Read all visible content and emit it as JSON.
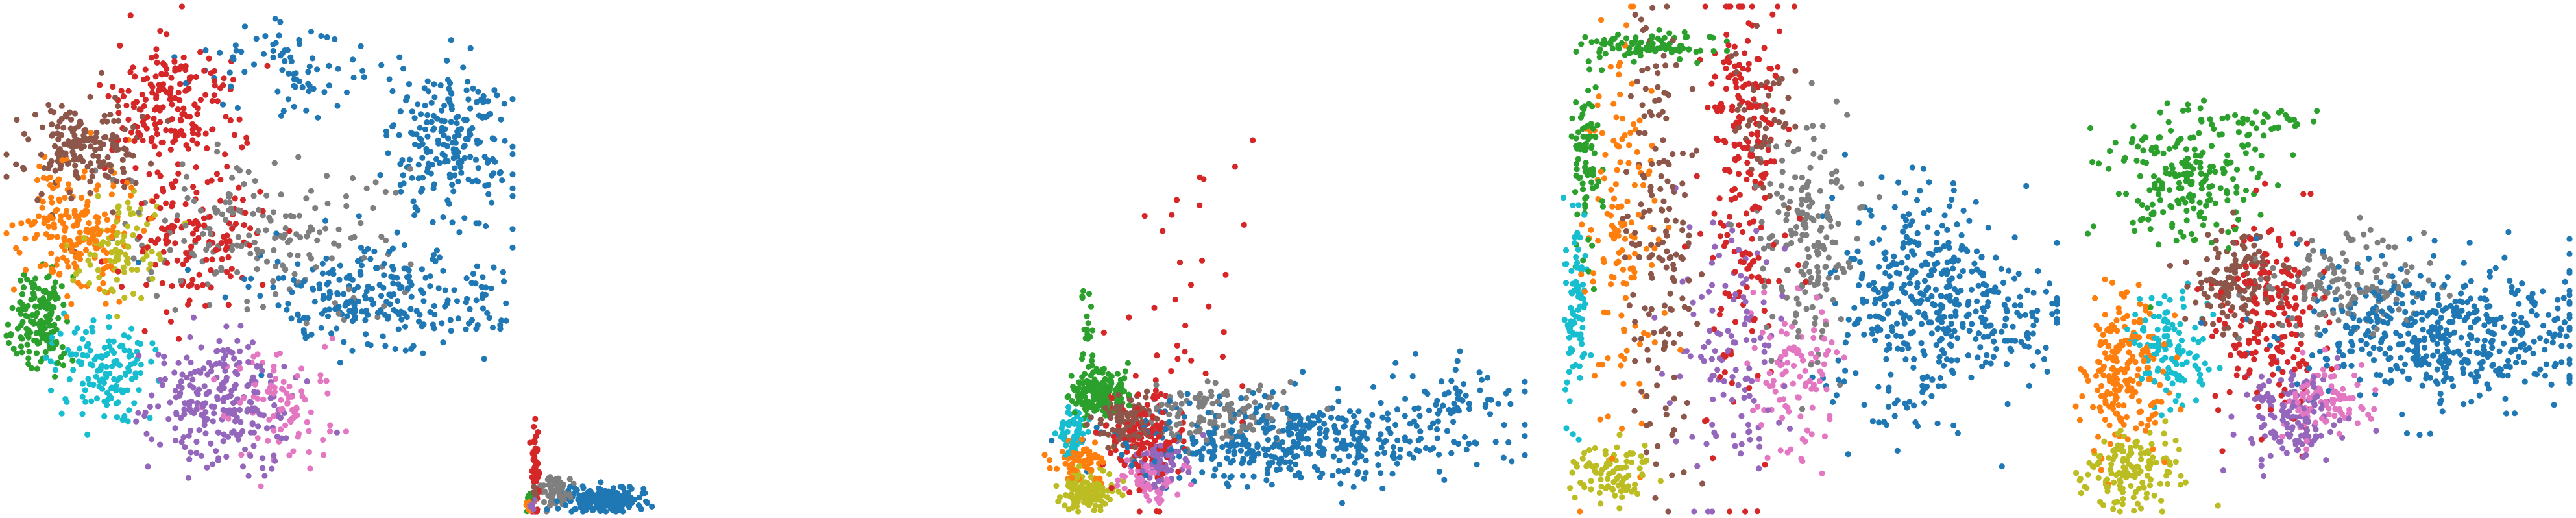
{
  "chart_data": [
    {
      "type": "scatter",
      "panel": 1,
      "title": "",
      "xlabel": "",
      "ylabel": "",
      "grid": false,
      "axes_visible": false,
      "legend": "none",
      "xlim": [
        0,
        1
      ],
      "ylim": [
        0,
        1
      ],
      "series": [
        {
          "color": "#1f77b4",
          "clusters": [
            {
              "center": [
                0.88,
                0.72
              ],
              "spread": [
                0.06,
                0.08
              ],
              "n": 220
            },
            {
              "center": [
                0.74,
                0.42
              ],
              "spread": [
                0.12,
                0.05
              ],
              "n": 260
            },
            {
              "center": [
                0.55,
                0.88
              ],
              "spread": [
                0.1,
                0.05
              ],
              "n": 80
            }
          ]
        },
        {
          "color": "#ff7f0e",
          "clusters": [
            {
              "center": [
                0.13,
                0.56
              ],
              "spread": [
                0.05,
                0.06
              ],
              "n": 200
            }
          ]
        },
        {
          "color": "#2ca02c",
          "clusters": [
            {
              "center": [
                0.07,
                0.38
              ],
              "spread": [
                0.025,
                0.05
              ],
              "n": 160
            }
          ]
        },
        {
          "color": "#d62728",
          "clusters": [
            {
              "center": [
                0.33,
                0.82
              ],
              "spread": [
                0.06,
                0.07
              ],
              "n": 180
            },
            {
              "center": [
                0.36,
                0.55
              ],
              "spread": [
                0.07,
                0.08
              ],
              "n": 140
            }
          ]
        },
        {
          "color": "#9467bd",
          "clusters": [
            {
              "center": [
                0.42,
                0.22
              ],
              "spread": [
                0.07,
                0.07
              ],
              "n": 240
            }
          ]
        },
        {
          "color": "#8c564b",
          "clusters": [
            {
              "center": [
                0.15,
                0.72
              ],
              "spread": [
                0.06,
                0.05
              ],
              "n": 180
            }
          ]
        },
        {
          "color": "#e377c2",
          "clusters": [
            {
              "center": [
                0.55,
                0.22
              ],
              "spread": [
                0.06,
                0.06
              ],
              "n": 90
            }
          ]
        },
        {
          "color": "#7f7f7f",
          "clusters": [
            {
              "center": [
                0.5,
                0.55
              ],
              "spread": [
                0.12,
                0.07
              ],
              "n": 180
            }
          ]
        },
        {
          "color": "#bcbd22",
          "clusters": [
            {
              "center": [
                0.22,
                0.52
              ],
              "spread": [
                0.04,
                0.05
              ],
              "n": 90
            }
          ]
        },
        {
          "color": "#17becf",
          "clusters": [
            {
              "center": [
                0.2,
                0.28
              ],
              "spread": [
                0.05,
                0.05
              ],
              "n": 140
            }
          ]
        }
      ]
    },
    {
      "type": "scatter",
      "panel": 2,
      "title": "",
      "xlabel": "",
      "ylabel": "",
      "grid": false,
      "axes_visible": false,
      "legend": "none",
      "xlim": [
        0,
        1
      ],
      "ylim": [
        0,
        1
      ],
      "series": [
        {
          "color": "#1f77b4",
          "clusters": [
            {
              "center": [
                0.45,
                0.025
              ],
              "spread": [
                0.12,
                0.012
              ],
              "n": 220
            }
          ]
        },
        {
          "color": "#d62728",
          "clusters": [
            {
              "center": [
                0.06,
                0.09
              ],
              "spread": [
                0.012,
                0.05
              ],
              "n": 50
            }
          ]
        },
        {
          "color": "#7f7f7f",
          "clusters": [
            {
              "center": [
                0.18,
                0.04
              ],
              "spread": [
                0.05,
                0.015
              ],
              "n": 60
            }
          ]
        },
        {
          "color": "#2ca02c",
          "clusters": [
            {
              "center": [
                0.02,
                0.02
              ],
              "spread": [
                0.008,
                0.008
              ],
              "n": 20
            }
          ]
        },
        {
          "color": "#ff7f0e",
          "clusters": [
            {
              "center": [
                0.03,
                0.015
              ],
              "spread": [
                0.01,
                0.008
              ],
              "n": 20
            }
          ]
        },
        {
          "color": "#9467bd",
          "clusters": [
            {
              "center": [
                0.04,
                0.01
              ],
              "spread": [
                0.01,
                0.006
              ],
              "n": 15
            }
          ]
        },
        {
          "color": "#8c564b",
          "clusters": [
            {
              "center": [
                0.05,
                0.03
              ],
              "spread": [
                0.012,
                0.01
              ],
              "n": 15
            }
          ]
        }
      ]
    },
    {
      "type": "scatter",
      "panel": 3,
      "title": "",
      "xlabel": "",
      "ylabel": "",
      "grid": false,
      "axes_visible": false,
      "legend": "none",
      "xlim": [
        0,
        1
      ],
      "ylim": [
        0,
        1
      ],
      "series": [
        {
          "color": "#1f77b4",
          "clusters": [
            {
              "center": [
                0.52,
                0.14
              ],
              "spread": [
                0.18,
                0.04
              ],
              "n": 420
            },
            {
              "center": [
                0.85,
                0.22
              ],
              "spread": [
                0.08,
                0.04
              ],
              "n": 60
            }
          ]
        },
        {
          "color": "#2ca02c",
          "clusters": [
            {
              "center": [
                0.11,
                0.24
              ],
              "spread": [
                0.03,
                0.025
              ],
              "n": 150
            },
            {
              "center": [
                0.09,
                0.35
              ],
              "spread": [
                0.01,
                0.05
              ],
              "n": 20
            }
          ]
        },
        {
          "color": "#bcbd22",
          "clusters": [
            {
              "center": [
                0.09,
                0.04
              ],
              "spread": [
                0.03,
                0.02
              ],
              "n": 120
            }
          ]
        },
        {
          "color": "#d62728",
          "clusters": [
            {
              "center": [
                0.21,
                0.15
              ],
              "spread": [
                0.04,
                0.05
              ],
              "n": 130
            },
            {
              "center": [
                0.32,
                0.45
              ],
              "spread": [
                0.08,
                0.15
              ],
              "n": 30
            }
          ]
        },
        {
          "color": "#8c564b",
          "clusters": [
            {
              "center": [
                0.17,
                0.18
              ],
              "spread": [
                0.03,
                0.03
              ],
              "n": 110
            }
          ]
        },
        {
          "color": "#7f7f7f",
          "clusters": [
            {
              "center": [
                0.35,
                0.19
              ],
              "spread": [
                0.08,
                0.03
              ],
              "n": 130
            }
          ]
        },
        {
          "color": "#ff7f0e",
          "clusters": [
            {
              "center": [
                0.08,
                0.1
              ],
              "spread": [
                0.025,
                0.025
              ],
              "n": 70
            }
          ]
        },
        {
          "color": "#9467bd",
          "clusters": [
            {
              "center": [
                0.24,
                0.1
              ],
              "spread": [
                0.025,
                0.025
              ],
              "n": 80
            }
          ]
        },
        {
          "color": "#17becf",
          "clusters": [
            {
              "center": [
                0.06,
                0.15
              ],
              "spread": [
                0.015,
                0.03
              ],
              "n": 60
            }
          ]
        },
        {
          "color": "#e377c2",
          "clusters": [
            {
              "center": [
                0.22,
                0.06
              ],
              "spread": [
                0.03,
                0.02
              ],
              "n": 60
            }
          ]
        }
      ]
    },
    {
      "type": "scatter",
      "panel": 4,
      "title": "",
      "xlabel": "",
      "ylabel": "",
      "grid": false,
      "axes_visible": false,
      "legend": "none",
      "xlim": [
        0,
        1
      ],
      "ylim": [
        0,
        1
      ],
      "series": [
        {
          "color": "#1f77b4",
          "clusters": [
            {
              "center": [
                0.72,
                0.42
              ],
              "spread": [
                0.08,
                0.12
              ],
              "n": 340
            },
            {
              "center": [
                0.88,
                0.38
              ],
              "spread": [
                0.07,
                0.06
              ],
              "n": 120
            }
          ]
        },
        {
          "color": "#2ca02c",
          "clusters": [
            {
              "center": [
                0.2,
                0.92
              ],
              "spread": [
                0.07,
                0.015
              ],
              "n": 90
            },
            {
              "center": [
                0.07,
                0.7
              ],
              "spread": [
                0.015,
                0.08
              ],
              "n": 80
            }
          ]
        },
        {
          "color": "#17becf",
          "clusters": [
            {
              "center": [
                0.05,
                0.38
              ],
              "spread": [
                0.012,
                0.1
              ],
              "n": 90
            }
          ]
        },
        {
          "color": "#bcbd22",
          "clusters": [
            {
              "center": [
                0.13,
                0.08
              ],
              "spread": [
                0.04,
                0.03
              ],
              "n": 90
            }
          ]
        },
        {
          "color": "#d62728",
          "clusters": [
            {
              "center": [
                0.38,
                0.6
              ],
              "spread": [
                0.04,
                0.25
              ],
              "n": 180
            },
            {
              "center": [
                0.38,
                0.85
              ],
              "spread": [
                0.03,
                0.05
              ],
              "n": 50
            }
          ]
        },
        {
          "color": "#8c564b",
          "clusters": [
            {
              "center": [
                0.22,
                0.55
              ],
              "spread": [
                0.03,
                0.25
              ],
              "n": 160
            },
            {
              "center": [
                0.42,
                0.78
              ],
              "spread": [
                0.03,
                0.07
              ],
              "n": 50
            }
          ]
        },
        {
          "color": "#7f7f7f",
          "clusters": [
            {
              "center": [
                0.5,
                0.55
              ],
              "spread": [
                0.05,
                0.12
              ],
              "n": 180
            }
          ]
        },
        {
          "color": "#ff7f0e",
          "clusters": [
            {
              "center": [
                0.14,
                0.55
              ],
              "spread": [
                0.035,
                0.2
              ],
              "n": 140
            }
          ]
        },
        {
          "color": "#9467bd",
          "clusters": [
            {
              "center": [
                0.36,
                0.3
              ],
              "spread": [
                0.06,
                0.12
              ],
              "n": 120
            }
          ]
        },
        {
          "color": "#e377c2",
          "clusters": [
            {
              "center": [
                0.48,
                0.28
              ],
              "spread": [
                0.05,
                0.08
              ],
              "n": 100
            }
          ]
        }
      ]
    },
    {
      "type": "scatter",
      "panel": 5,
      "title": "",
      "xlabel": "",
      "ylabel": "",
      "grid": false,
      "axes_visible": false,
      "legend": "none",
      "xlim": [
        0,
        1
      ],
      "ylim": [
        0,
        1
      ],
      "series": [
        {
          "color": "#1f77b4",
          "clusters": [
            {
              "center": [
                0.76,
                0.35
              ],
              "spread": [
                0.14,
                0.07
              ],
              "n": 480
            }
          ]
        },
        {
          "color": "#2ca02c",
          "clusters": [
            {
              "center": [
                0.24,
                0.66
              ],
              "spread": [
                0.08,
                0.06
              ],
              "n": 200
            },
            {
              "center": [
                0.35,
                0.78
              ],
              "spread": [
                0.08,
                0.015
              ],
              "n": 40
            }
          ]
        },
        {
          "color": "#d62728",
          "clusters": [
            {
              "center": [
                0.4,
                0.38
              ],
              "spread": [
                0.05,
                0.1
              ],
              "n": 180
            }
          ]
        },
        {
          "color": "#8c564b",
          "clusters": [
            {
              "center": [
                0.34,
                0.45
              ],
              "spread": [
                0.05,
                0.05
              ],
              "n": 140
            }
          ]
        },
        {
          "color": "#7f7f7f",
          "clusters": [
            {
              "center": [
                0.55,
                0.45
              ],
              "spread": [
                0.08,
                0.05
              ],
              "n": 140
            }
          ]
        },
        {
          "color": "#ff7f0e",
          "clusters": [
            {
              "center": [
                0.11,
                0.28
              ],
              "spread": [
                0.04,
                0.08
              ],
              "n": 200
            }
          ]
        },
        {
          "color": "#bcbd22",
          "clusters": [
            {
              "center": [
                0.13,
                0.08
              ],
              "spread": [
                0.05,
                0.04
              ],
              "n": 150
            }
          ]
        },
        {
          "color": "#17becf",
          "clusters": [
            {
              "center": [
                0.21,
                0.32
              ],
              "spread": [
                0.04,
                0.05
              ],
              "n": 120
            }
          ]
        },
        {
          "color": "#9467bd",
          "clusters": [
            {
              "center": [
                0.45,
                0.18
              ],
              "spread": [
                0.05,
                0.05
              ],
              "n": 140
            }
          ]
        },
        {
          "color": "#e377c2",
          "clusters": [
            {
              "center": [
                0.52,
                0.22
              ],
              "spread": [
                0.04,
                0.04
              ],
              "n": 90
            }
          ]
        }
      ]
    }
  ]
}
